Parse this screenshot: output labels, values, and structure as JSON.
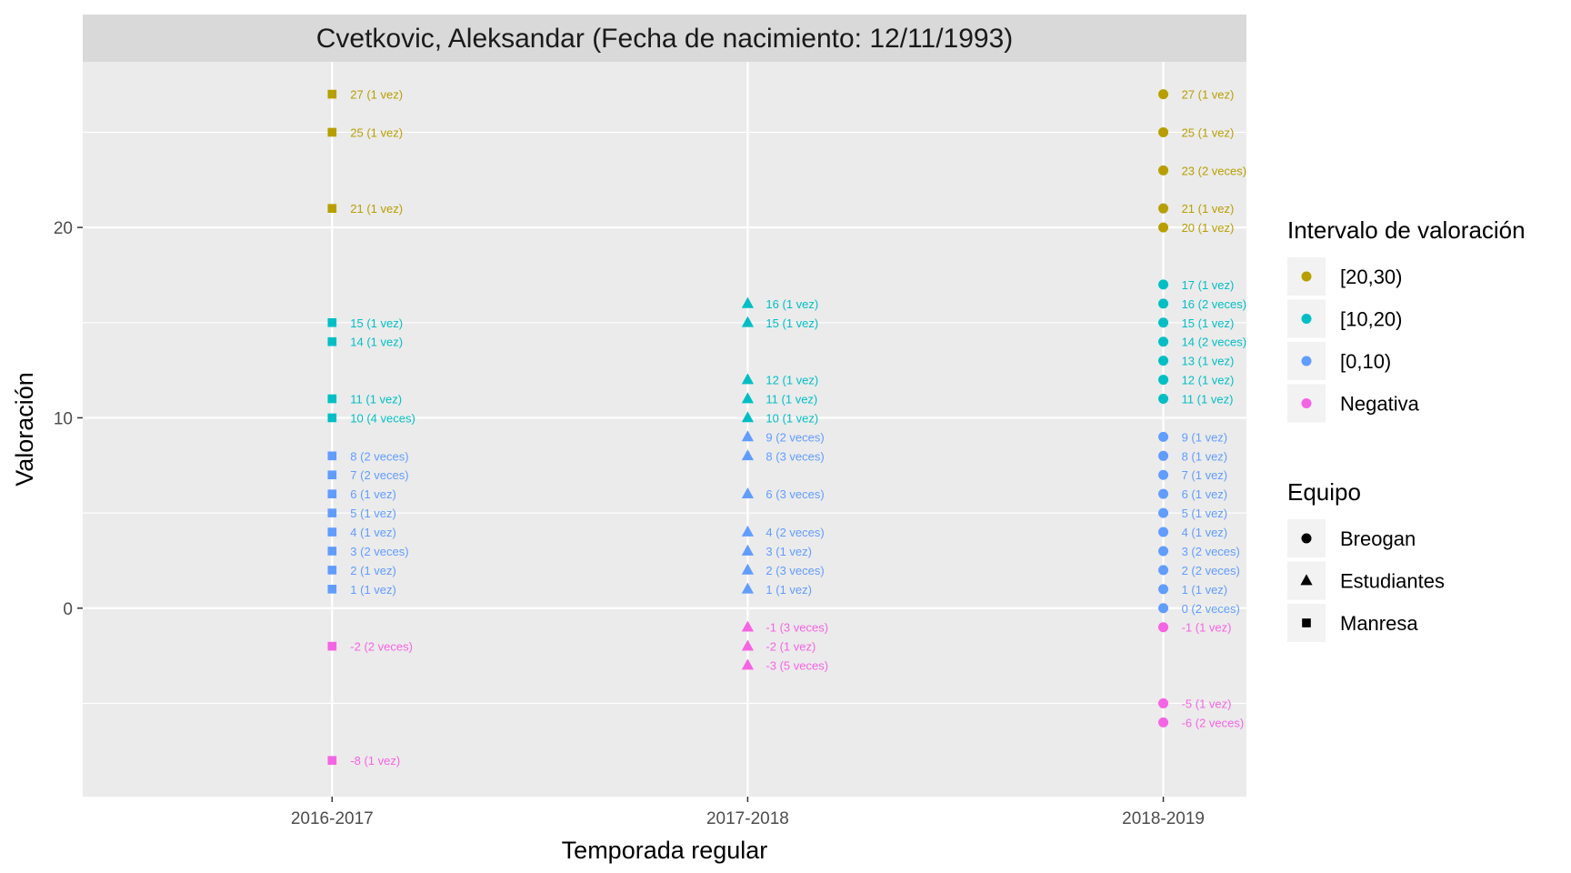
{
  "chart_data": {
    "type": "scatter",
    "title": "Cvetkovic, Aleksandar (Fecha de nacimiento: 12/11/1993)",
    "xlabel": "Temporada regular",
    "ylabel": "Valoración",
    "categories": [
      "2016-2017",
      "2017-2018",
      "2018-2019"
    ],
    "y_ticks": [
      "0",
      "10",
      "20"
    ],
    "y_tick_values": [
      0,
      10,
      20
    ],
    "ylim": [
      -9.9,
      28.7
    ],
    "grid": true,
    "legend_position": "right",
    "legend_color": {
      "title": "Intervalo de valoración",
      "entries": [
        {
          "label": "[20,30)",
          "color": "#B79F00"
        },
        {
          "label": "[10,20)",
          "color": "#00BFC4"
        },
        {
          "label": "[0,10)",
          "color": "#619CFF"
        },
        {
          "label": "Negativa",
          "color": "#F564E3"
        }
      ]
    },
    "legend_shape": {
      "title": "Equipo",
      "entries": [
        {
          "label": "Breogan",
          "shape": "circle"
        },
        {
          "label": "Estudiantes",
          "shape": "triangle"
        },
        {
          "label": "Manresa",
          "shape": "square"
        }
      ]
    },
    "series": [
      {
        "name": "Manresa",
        "season": "2016-2017",
        "shape": "square",
        "points": [
          {
            "y": 27,
            "label": "27 (1 vez)",
            "group": "[20,30)"
          },
          {
            "y": 25,
            "label": "25 (1 vez)",
            "group": "[20,30)"
          },
          {
            "y": 21,
            "label": "21 (1 vez)",
            "group": "[20,30)"
          },
          {
            "y": 15,
            "label": "15 (1 vez)",
            "group": "[10,20)"
          },
          {
            "y": 14,
            "label": "14 (1 vez)",
            "group": "[10,20)"
          },
          {
            "y": 11,
            "label": "11 (1 vez)",
            "group": "[10,20)"
          },
          {
            "y": 10,
            "label": "10 (4 veces)",
            "group": "[10,20)"
          },
          {
            "y": 8,
            "label": "8 (2 veces)",
            "group": "[0,10)"
          },
          {
            "y": 7,
            "label": "7 (2 veces)",
            "group": "[0,10)"
          },
          {
            "y": 6,
            "label": "6 (1 vez)",
            "group": "[0,10)"
          },
          {
            "y": 5,
            "label": "5 (1 vez)",
            "group": "[0,10)"
          },
          {
            "y": 4,
            "label": "4 (1 vez)",
            "group": "[0,10)"
          },
          {
            "y": 3,
            "label": "3 (2 veces)",
            "group": "[0,10)"
          },
          {
            "y": 2,
            "label": "2 (1 vez)",
            "group": "[0,10)"
          },
          {
            "y": 1,
            "label": "1 (1 vez)",
            "group": "[0,10)"
          },
          {
            "y": -2,
            "label": "-2 (2 veces)",
            "group": "Negativa"
          },
          {
            "y": -8,
            "label": "-8 (1 vez)",
            "group": "Negativa"
          }
        ]
      },
      {
        "name": "Estudiantes",
        "season": "2017-2018",
        "shape": "triangle",
        "points": [
          {
            "y": 16,
            "label": "16 (1 vez)",
            "group": "[10,20)"
          },
          {
            "y": 15,
            "label": "15 (1 vez)",
            "group": "[10,20)"
          },
          {
            "y": 12,
            "label": "12 (1 vez)",
            "group": "[10,20)"
          },
          {
            "y": 11,
            "label": "11 (1 vez)",
            "group": "[10,20)"
          },
          {
            "y": 10,
            "label": "10 (1 vez)",
            "group": "[10,20)"
          },
          {
            "y": 9,
            "label": "9 (2 veces)",
            "group": "[0,10)"
          },
          {
            "y": 8,
            "label": "8 (3 veces)",
            "group": "[0,10)"
          },
          {
            "y": 6,
            "label": "6 (3 veces)",
            "group": "[0,10)"
          },
          {
            "y": 4,
            "label": "4 (2 veces)",
            "group": "[0,10)"
          },
          {
            "y": 3,
            "label": "3 (1 vez)",
            "group": "[0,10)"
          },
          {
            "y": 2,
            "label": "2 (3 veces)",
            "group": "[0,10)"
          },
          {
            "y": 1,
            "label": "1 (1 vez)",
            "group": "[0,10)"
          },
          {
            "y": -1,
            "label": "-1 (3 veces)",
            "group": "Negativa"
          },
          {
            "y": -2,
            "label": "-2 (1 vez)",
            "group": "Negativa"
          },
          {
            "y": -3,
            "label": "-3 (5 veces)",
            "group": "Negativa"
          }
        ]
      },
      {
        "name": "Breogan",
        "season": "2018-2019",
        "shape": "circle",
        "points": [
          {
            "y": 27,
            "label": "27 (1 vez)",
            "group": "[20,30)"
          },
          {
            "y": 25,
            "label": "25 (1 vez)",
            "group": "[20,30)"
          },
          {
            "y": 23,
            "label": "23 (2 veces)",
            "group": "[20,30)"
          },
          {
            "y": 21,
            "label": "21 (1 vez)",
            "group": "[20,30)"
          },
          {
            "y": 20,
            "label": "20 (1 vez)",
            "group": "[20,30)"
          },
          {
            "y": 17,
            "label": "17 (1 vez)",
            "group": "[10,20)"
          },
          {
            "y": 16,
            "label": "16 (2 veces)",
            "group": "[10,20)"
          },
          {
            "y": 15,
            "label": "15 (1 vez)",
            "group": "[10,20)"
          },
          {
            "y": 14,
            "label": "14 (2 veces)",
            "group": "[10,20)"
          },
          {
            "y": 13,
            "label": "13 (1 vez)",
            "group": "[10,20)"
          },
          {
            "y": 12,
            "label": "12 (1 vez)",
            "group": "[10,20)"
          },
          {
            "y": 11,
            "label": "11 (1 vez)",
            "group": "[10,20)"
          },
          {
            "y": 9,
            "label": "9 (1 vez)",
            "group": "[0,10)"
          },
          {
            "y": 8,
            "label": "8 (1 vez)",
            "group": "[0,10)"
          },
          {
            "y": 7,
            "label": "7 (1 vez)",
            "group": "[0,10)"
          },
          {
            "y": 6,
            "label": "6 (1 vez)",
            "group": "[0,10)"
          },
          {
            "y": 5,
            "label": "5 (1 vez)",
            "group": "[0,10)"
          },
          {
            "y": 4,
            "label": "4 (1 vez)",
            "group": "[0,10)"
          },
          {
            "y": 3,
            "label": "3 (2 veces)",
            "group": "[0,10)"
          },
          {
            "y": 2,
            "label": "2 (2 veces)",
            "group": "[0,10)"
          },
          {
            "y": 1,
            "label": "1 (1 vez)",
            "group": "[0,10)"
          },
          {
            "y": 0,
            "label": "0 (2 veces)",
            "group": "[0,10)"
          },
          {
            "y": -1,
            "label": "-1 (1 vez)",
            "group": "Negativa"
          },
          {
            "y": -5,
            "label": "-5 (1 vez)",
            "group": "Negativa"
          },
          {
            "y": -6,
            "label": "-6 (2 veces)",
            "group": "Negativa"
          }
        ]
      }
    ]
  }
}
